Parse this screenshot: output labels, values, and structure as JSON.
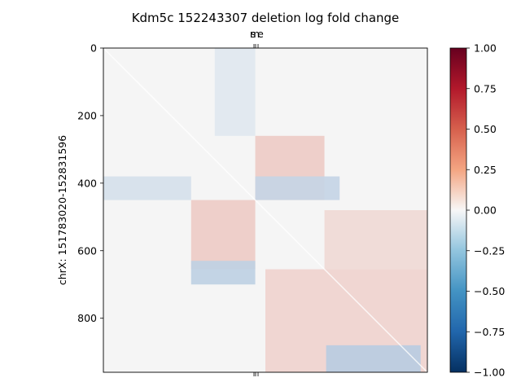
{
  "chart_data": {
    "type": "heatmap",
    "title": "Kdm5c 152243307 deletion log fold change",
    "ylabel": "chrX: 151783020-152831596",
    "xlabel": "",
    "top_tick_labels": [
      "s",
      "e",
      "m"
    ],
    "y_ticks": [
      0,
      200,
      400,
      600,
      800
    ],
    "y_tick_labels": [
      "0",
      "200",
      "400",
      "600",
      "800"
    ],
    "bins": 960,
    "colorbar": {
      "vmin": -1.0,
      "vmax": 1.0,
      "ticks": [
        1.0,
        0.75,
        0.5,
        0.25,
        0.0,
        -0.25,
        -0.5,
        -0.75,
        -1.0
      ],
      "tick_labels": [
        "1.00",
        "0.75",
        "0.50",
        "0.25",
        "0.00",
        "−0.25",
        "−0.50",
        "−0.75",
        "−1.00"
      ],
      "colormap": "RdBu_r"
    },
    "background_color": "#f5f5f5",
    "mask_note_color": "#f5f5f5",
    "blocks": [
      {
        "r0": 260,
        "r1": 450,
        "c0": 450,
        "c1": 655,
        "value": 0.22
      },
      {
        "r0": 450,
        "r1": 655,
        "c0": 260,
        "c1": 450,
        "value": 0.22
      },
      {
        "r0": 655,
        "r1": 960,
        "c0": 480,
        "c1": 960,
        "value": 0.18
      },
      {
        "r0": 480,
        "r1": 655,
        "c0": 655,
        "c1": 960,
        "value": 0.15
      },
      {
        "r0": 0,
        "r1": 260,
        "c0": 330,
        "c1": 450,
        "value": -0.08
      },
      {
        "r0": 380,
        "r1": 450,
        "c0": 0,
        "c1": 260,
        "value": -0.12
      },
      {
        "r0": 380,
        "r1": 450,
        "c0": 450,
        "c1": 700,
        "value": -0.18
      },
      {
        "r0": 630,
        "r1": 700,
        "c0": 260,
        "c1": 450,
        "value": -0.2
      },
      {
        "r0": 880,
        "r1": 960,
        "c0": 660,
        "c1": 940,
        "value": -0.22
      }
    ]
  }
}
